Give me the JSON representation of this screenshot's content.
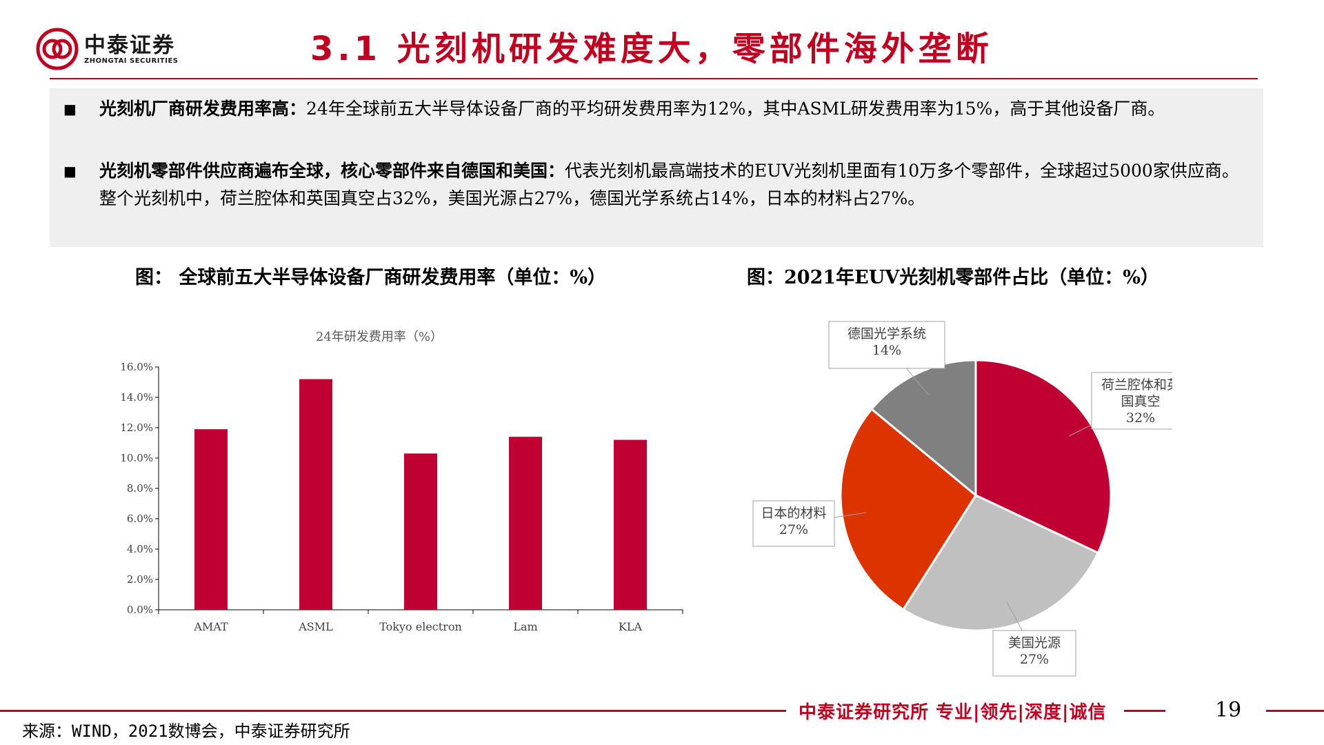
{
  "header": {
    "logo_cn": "中泰证券",
    "logo_en": "ZHONGTAI SECURITIES",
    "title": "3.1 光刻机研发难度大，零部件海外垄断"
  },
  "bullets": [
    {
      "marker": "■",
      "bold": "光刻机厂商研发费用率高：",
      "text": "24年全球前五大半导体设备厂商的平均研发费用率为12%，其中ASML研发费用率为15%，高于其他设备厂商。"
    },
    {
      "marker": "■",
      "bold": "光刻机零部件供应商遍布全球，核心零部件来自德国和美国：",
      "text": "代表光刻机最高端技术的EUV光刻机里面有10万多个零部件，全球超过5000家供应商。整个光刻机中，荷兰腔体和英国真空占32%，美国光源占27%，德国光学系统占14%，日本的材料占27%。"
    }
  ],
  "charts": {
    "left_caption": "图： 全球前五大半导体设备厂商研发费用率（单位：%）",
    "right_caption": "图：2021年EUV光刻机零部件占比（单位：%）"
  },
  "chart_data": [
    {
      "type": "bar",
      "title": "24年研发费用率（%）",
      "categories": [
        "AMAT",
        "ASML",
        "Tokyo electron",
        "Lam",
        "KLA"
      ],
      "values": [
        11.9,
        15.2,
        10.3,
        11.4,
        11.2
      ],
      "ylim": [
        0,
        16
      ],
      "yticks": [
        "0.0%",
        "2.0%",
        "4.0%",
        "6.0%",
        "8.0%",
        "10.0%",
        "12.0%",
        "14.0%",
        "16.0%"
      ],
      "color": "#c00032",
      "grid": false
    },
    {
      "type": "pie",
      "labels": [
        "荷兰腔体和英国真空",
        "美国光源",
        "日本的材料",
        "德国光学系统"
      ],
      "value_labels": [
        "32%",
        "27%",
        "27%",
        "14%"
      ],
      "values": [
        32,
        27,
        27,
        14
      ],
      "colors": [
        "#c00032",
        "#c0c0c0",
        "#dd3300",
        "#808080"
      ]
    }
  ],
  "footer": {
    "slogan": "中泰证券研究所 专业|领先|深度|诚信",
    "page": "19",
    "source": "来源：WIND，2021数博会，中泰证券研究所"
  }
}
